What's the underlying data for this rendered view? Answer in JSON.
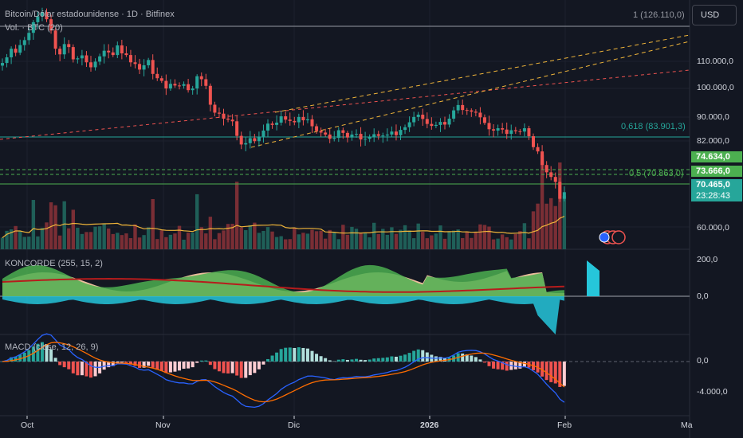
{
  "header": {
    "title": "Bitcoin/Dólar estadounidense · 1D · Bitfinex",
    "volume_label": "Vol. · BTC (20)",
    "top_value": "1 (126.110,0)"
  },
  "currency_button": "USD",
  "indicators": {
    "koncorde": "KONCORDE (255, 15, 2)",
    "macd": "MACD (close, 12, 26, 9)"
  },
  "price_axis": {
    "labels": [
      "110.000,0",
      "100.000,0",
      "90.000,0",
      "82.000,0",
      "60.000,0"
    ]
  },
  "koncorde_axis": {
    "labels": [
      "200,0",
      "0,0"
    ]
  },
  "macd_axis": {
    "labels": [
      "0,0",
      "-4.000,0"
    ]
  },
  "time_axis": {
    "labels": [
      "Oct",
      "Nov",
      "Dic",
      "2026",
      "Feb",
      "Ma"
    ]
  },
  "fib_labels": {
    "f618": "0,618 (83.901,3)",
    "f5": "0,5 (70.863,0)"
  },
  "price_tags": {
    "t1": "74.634,0",
    "t2": "73.666,0",
    "t3": "70.465,0",
    "countdown": "23:28:43"
  },
  "colors": {
    "background": "#131722",
    "up": "#26a69a",
    "down": "#ef5350",
    "tag_green": "#4caf50",
    "trend_orange": "#f0b53a",
    "trend_red": "#ef5350",
    "fib_teal": "#26a69a",
    "fib_green": "#4caf50",
    "macd_line": "#2962ff",
    "signal_line": "#ff6d00"
  },
  "chart_data": [
    {
      "type": "candlestick",
      "title": "Bitcoin/Dólar estadounidense · 1D · Bitfinex",
      "x_labels": [
        "Oct",
        "Nov",
        "Dic",
        "2026",
        "Feb",
        "Ma"
      ],
      "y_ticks": [
        110000,
        100000,
        90000,
        82000,
        60000
      ],
      "fib_levels": [
        {
          "ratio": 0.618,
          "price": 83901.3
        },
        {
          "ratio": 0.5,
          "price": 70863.0
        }
      ],
      "last_price": 70465.0,
      "close_series": [
        109500,
        111200,
        113800,
        112600,
        114900,
        116400,
        118600,
        121800,
        123600,
        124900,
        122700,
        119300,
        113800,
        112100,
        115200,
        114300,
        110600,
        110900,
        111800,
        109700,
        108200,
        109900,
        111500,
        113200,
        112700,
        111900,
        114800,
        112400,
        111900,
        109700,
        109200,
        107500,
        108800,
        110400,
        106200,
        104900,
        104100,
        101800,
        103200,
        102700,
        102600,
        103100,
        101300,
        101800,
        105500,
        104600,
        102600,
        96900,
        94500,
        94200,
        92700,
        92400,
        91900,
        87500,
        84900,
        85300,
        86800,
        85900,
        87300,
        89100,
        91200,
        90800,
        91500,
        93400,
        92400,
        92000,
        91600,
        93200,
        92200,
        92500,
        90400,
        89000,
        88500,
        87900,
        86600,
        86900,
        89200,
        88400,
        87000,
        87900,
        88100,
        86400,
        86600,
        87200,
        88000,
        87500,
        87600,
        87900,
        88800,
        87700,
        89300,
        90100,
        91600,
        93200,
        93900,
        92600,
        91100,
        90500,
        90800,
        91700,
        90900,
        92700,
        95200,
        96800,
        95300,
        95200,
        94800,
        94500,
        93100,
        91400,
        89500,
        89100,
        89800,
        89400,
        88100,
        89200,
        88900,
        88800,
        89800,
        87400,
        84100,
        82800,
        78700,
        76500,
        75100,
        73600,
        68500,
        70500
      ],
      "volume_moving_average": true,
      "trend_lines": [
        "orange dashed channel upper",
        "orange dashed channel lower",
        "red dashed resistance"
      ]
    },
    {
      "type": "area",
      "title": "KONCORDE (255, 15, 2)",
      "y_ticks": [
        200,
        0
      ],
      "series": [
        "brown area",
        "green area",
        "blue area",
        "red line"
      ]
    },
    {
      "type": "bar",
      "title": "MACD (close, 12, 26, 9)",
      "y_ticks": [
        0,
        -4000
      ],
      "series": [
        "histogram",
        "MACD line",
        "signal line"
      ]
    }
  ]
}
